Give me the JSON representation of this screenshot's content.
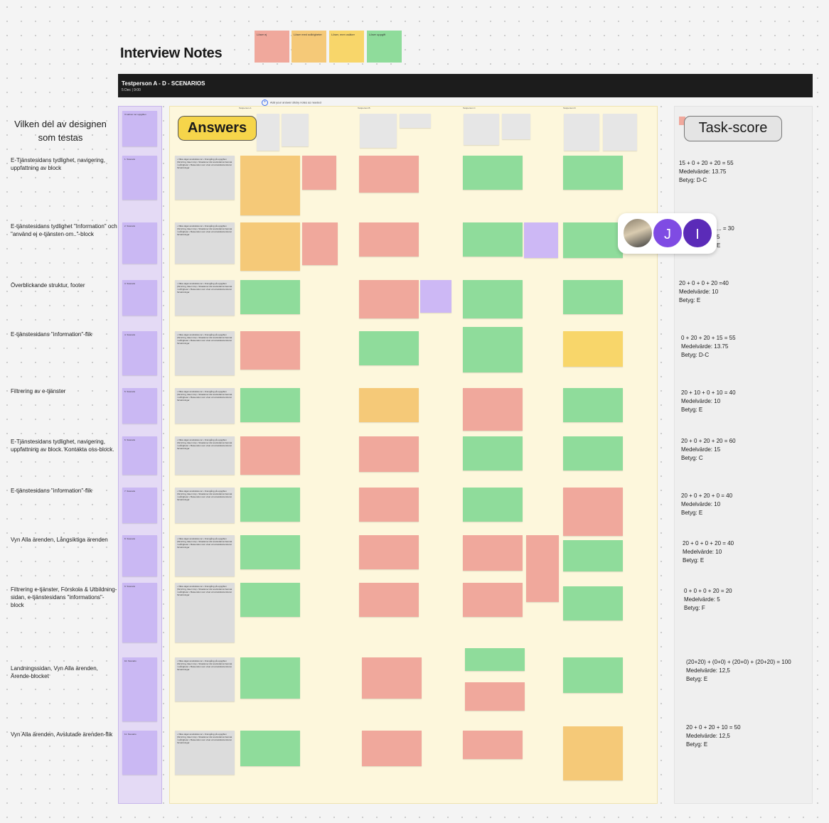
{
  "page": {
    "title": "Interview Notes"
  },
  "legend": [
    {
      "text": "Löser ej",
      "color": "#f0a89c"
    },
    {
      "text": "Löser med svårigheter",
      "color": "#f5c978"
    },
    {
      "text": "Löser, men osäker",
      "color": "#f8d66a"
    },
    {
      "text": "Löser uppgift",
      "color": "#8fdc9b"
    }
  ],
  "header": {
    "title": "Testperson A - D - SCENARIOS",
    "subtitle": "5 Dec | 9:00"
  },
  "add_link": "Add your answer sticky notes as needed",
  "left_heading": "Vilken del av designen som testas",
  "answers_label": "Answers",
  "task_label": "Task-score",
  "column_headers": [
    "Testperson A",
    "Testperson B",
    "Testperson C",
    "Testperson D"
  ],
  "top_purple_note": "Vi skriver ner uppgiften",
  "rows": [
    {
      "label": "E-Tjänstesidans tydlighet, navigering, uppfattning av block",
      "scenario": "1. Scenario",
      "score": [
        "15 + 0 + 20 + 20 = 55",
        "Medelvärde: 13.75",
        "Betyg: D-C"
      ]
    },
    {
      "label": "E-tjänstesidans tydlighet \"Information\" och \"använd ej e-tjänsten om..\"-block",
      "scenario": "2. Scenario",
      "score": [
        "... = 30",
        "5",
        "E"
      ]
    },
    {
      "label": "Överblickande struktur, footer",
      "scenario": "3. Scenario",
      "score": [
        "20 + 0 + 0 + 20 =40",
        "Medelvärde: 10",
        "Betyg: E"
      ]
    },
    {
      "label": "E-tjänstesidans \"information\"-flik",
      "scenario": "4. Scenario",
      "score": [
        "0 + 20 + 20 + 15 = 55",
        "Medelvärde: 13.75",
        "Betyg: D-C"
      ]
    },
    {
      "label": "Filtrering av e-tjänster",
      "scenario": "5. Scenario",
      "score": [
        "20 + 10 + 0 + 10 = 40",
        "Medelvärde: 10",
        "Betyg: E"
      ]
    },
    {
      "label": "E-Tjänstesidans tydlighet, navigering, uppfattning av block. Kontakta oss-block.",
      "scenario": "6. Scenario",
      "score": [
        "20 + 0 + 20 + 20 = 60",
        "Medelvärde: 15",
        "Betyg: C"
      ]
    },
    {
      "label": "E-tjänstesidans \"information\"-flik",
      "scenario": "7. Scenario",
      "score": [
        "20 + 0 + 20 + 0 = 40",
        "Medelvärde: 10",
        "Betyg: E"
      ]
    },
    {
      "label": "Vyn Alla ärenden, Långsiktiga ärenden",
      "scenario": "8. Scenario",
      "score": [
        "20 + 0 + 0 + 20 = 40",
        "Medelvärde: 10",
        "Betyg: E"
      ]
    },
    {
      "label": "Filtrering e-tjänster, Förskola & Utbildning-sidan, e-tjänstesidans \"informations\"-block",
      "scenario": "9. Scenario",
      "score": [
        "0 + 0 + 0 + 20 = 20",
        "Medelvärde: 5",
        "Betyg: F"
      ]
    },
    {
      "label": "Landningssidan, Vyn Alla ärenden, Ärende-blocket",
      "scenario": "10. Scenario",
      "score": [
        "(20+20) + (0+0) + (20+0) + (20+20) = 100",
        "Medelvärde: 12,5",
        "Betyg: E"
      ]
    },
    {
      "label": "Vyn Alla ärenden, Avslutade ärenden-flik",
      "scenario": "11. Scenario",
      "score": [
        "20 + 0 + 20 + 10 = 50",
        "Medelvärde: 12,5",
        "Betyg: E"
      ]
    }
  ],
  "gray_note_text": "• Vilka vägar användare tar • Framgång på uppgiften (förvirring, läser inte) • Situationer där användarna hamnat i svårigheter • Beteenden som visar ett användarcentrerat förväntningar",
  "avatars": [
    "J",
    "I"
  ]
}
